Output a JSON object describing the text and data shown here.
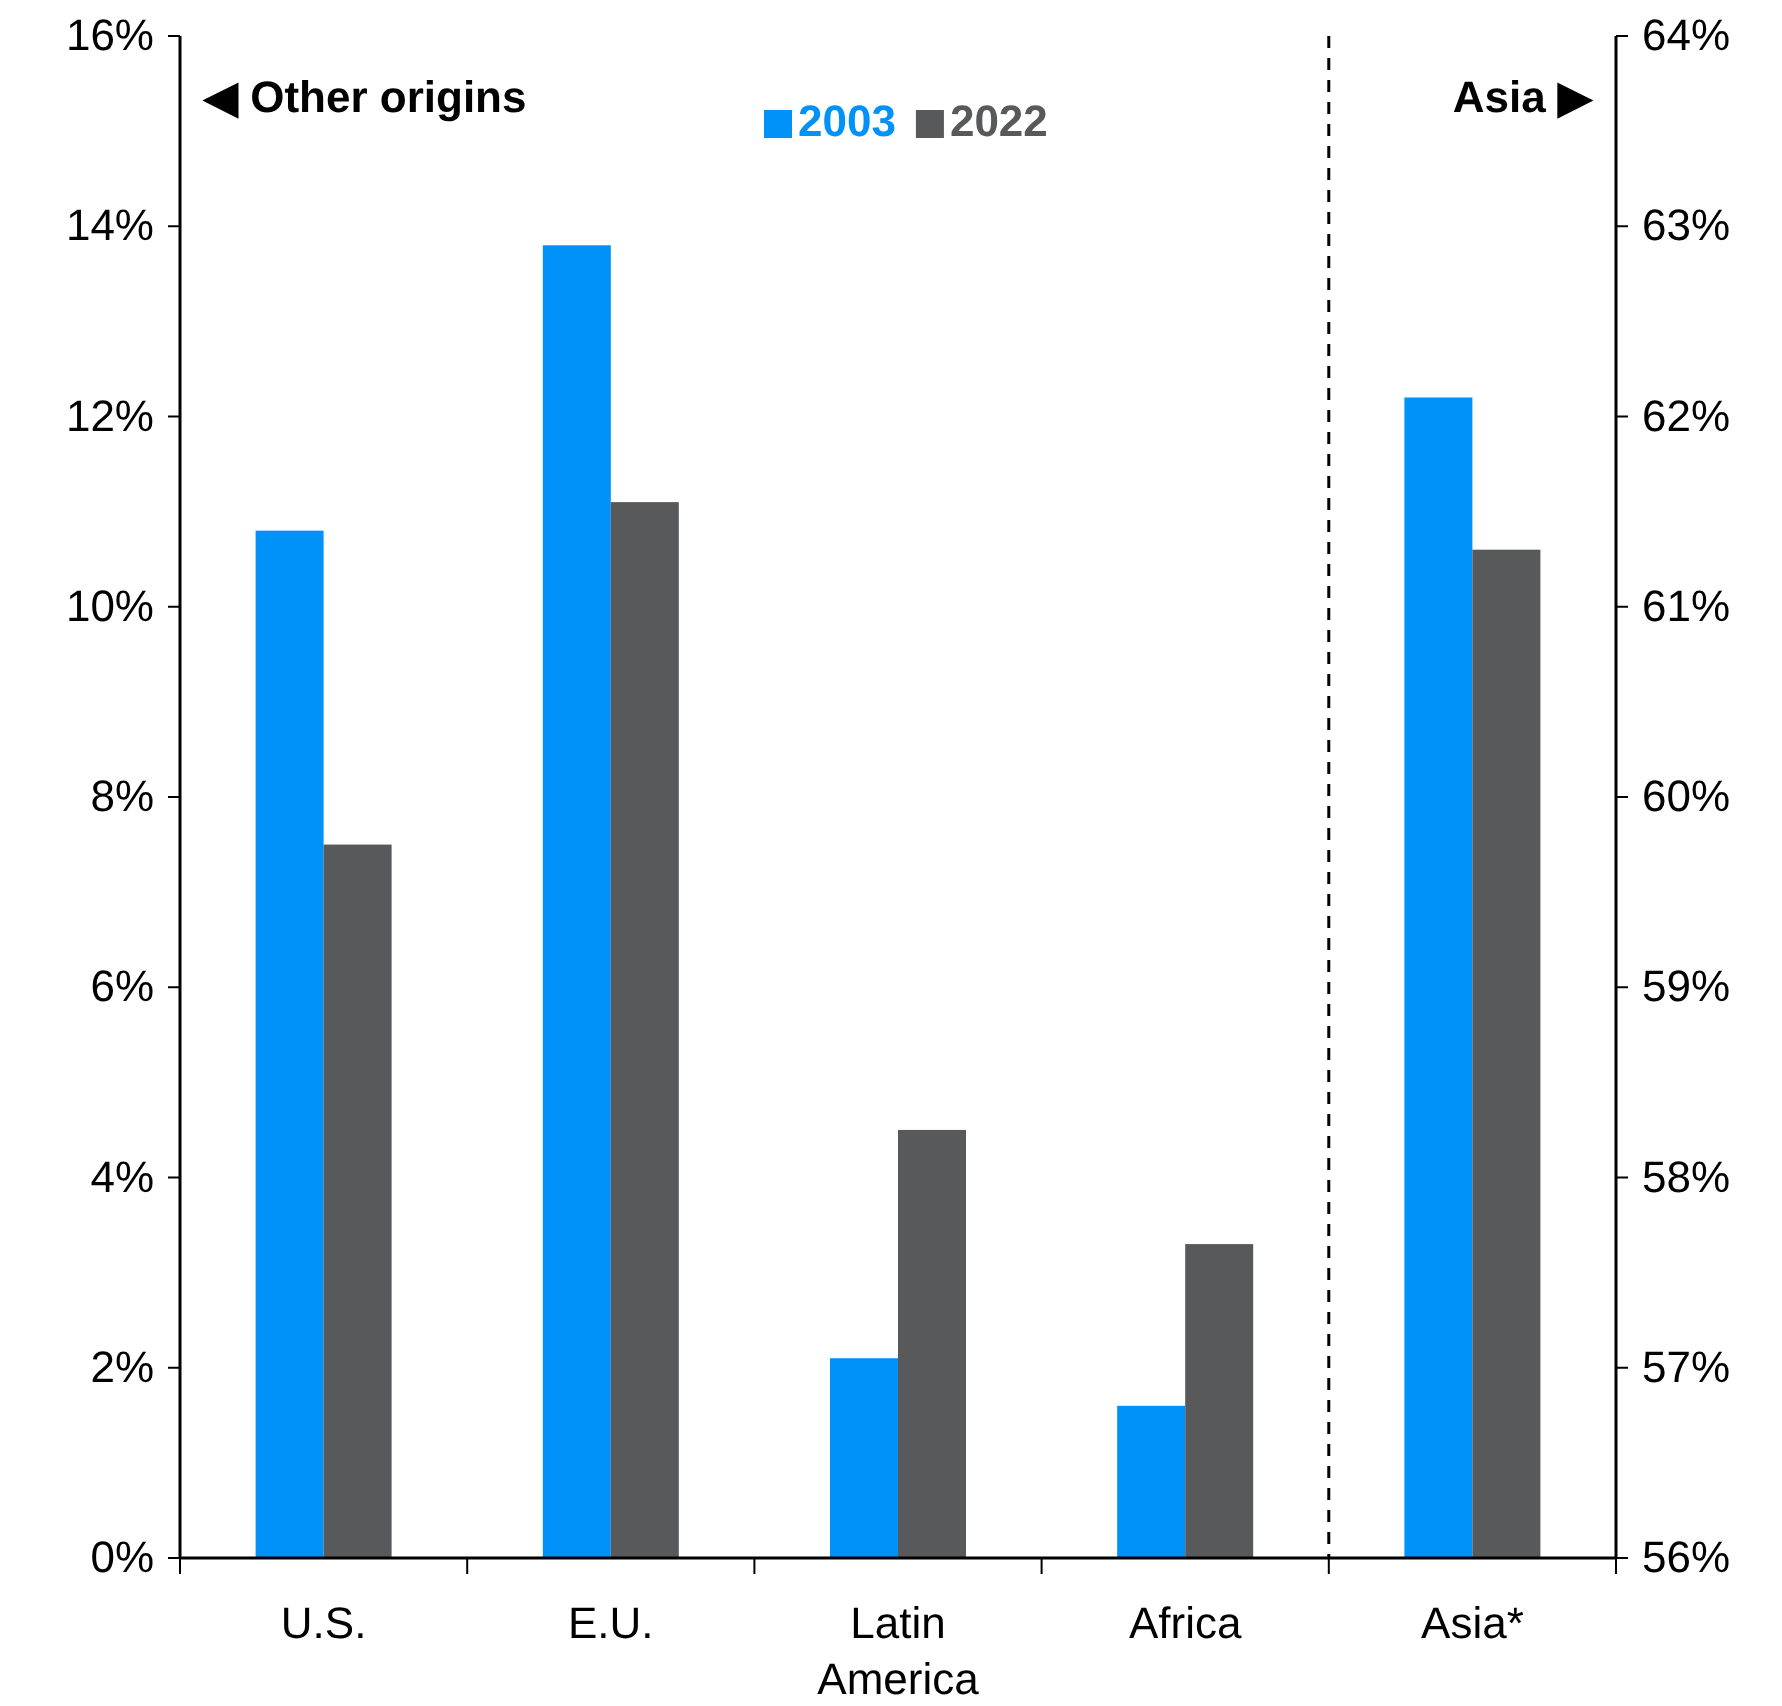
{
  "chart_data": {
    "type": "bar",
    "categories": [
      "U.S.",
      "E.U.",
      "Latin America",
      "Africa",
      "Asia*"
    ],
    "series": [
      {
        "name": "2003",
        "color": "#0091f9",
        "values": [
          10.8,
          13.8,
          2.1,
          1.6,
          null
        ]
      },
      {
        "name": "2022",
        "color": "#58595b",
        "values": [
          7.5,
          11.1,
          4.5,
          3.3,
          null
        ]
      },
      {
        "color": "#0091f9",
        "axis": "y2",
        "values": [
          null,
          null,
          null,
          null,
          62.1
        ]
      },
      {
        "color": "#58595b",
        "axis": "y2",
        "values": [
          null,
          null,
          null,
          null,
          61.3
        ]
      }
    ],
    "ylim": [
      0,
      16
    ],
    "yticks": [
      {
        "value": 0,
        "label": "0%"
      },
      {
        "value": 2,
        "label": "2%"
      },
      {
        "value": 4,
        "label": "4%"
      },
      {
        "value": 6,
        "label": "6%"
      },
      {
        "value": 8,
        "label": "8%"
      },
      {
        "value": 10,
        "label": "10%"
      },
      {
        "value": 12,
        "label": "12%"
      },
      {
        "value": 14,
        "label": "14%"
      },
      {
        "value": 16,
        "label": "16%"
      }
    ],
    "y2lim": [
      56,
      64
    ],
    "y2ticks": [
      {
        "value": 56,
        "label": "56%"
      },
      {
        "value": 57,
        "label": "57%"
      },
      {
        "value": 58,
        "label": "58%"
      },
      {
        "value": 59,
        "label": "59%"
      },
      {
        "value": 60,
        "label": "60%"
      },
      {
        "value": 61,
        "label": "61%"
      },
      {
        "value": 62,
        "label": "62%"
      },
      {
        "value": 63,
        "label": "63%"
      },
      {
        "value": 64,
        "label": "64%"
      }
    ],
    "annotations": [
      "◀ Other origins",
      "Asia ▶"
    ],
    "legend": "top",
    "grid": false
  }
}
